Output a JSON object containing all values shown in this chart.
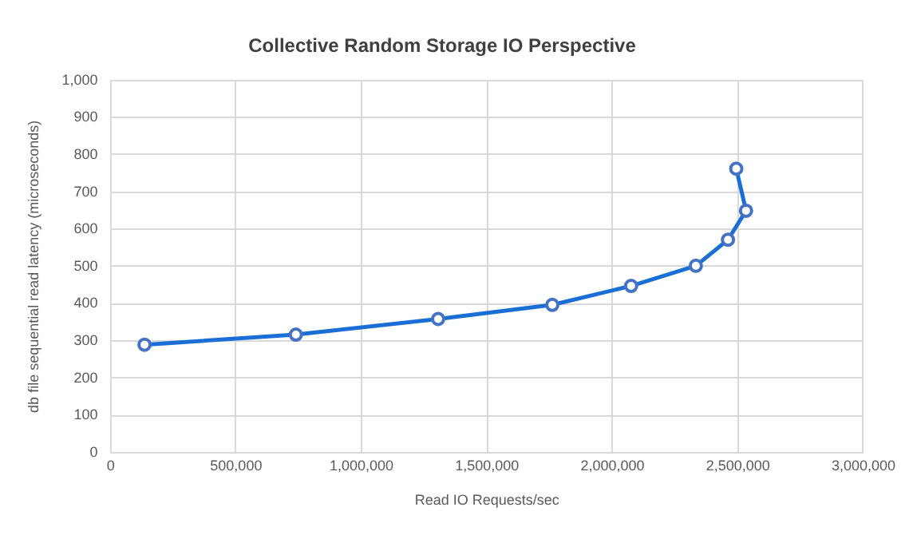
{
  "chart_data": {
    "type": "line",
    "title": "Collective Random Storage IO Perspective",
    "xlabel": "Read IO Requests/sec",
    "ylabel": "db file sequential read latency (microseconds)",
    "x": [
      135000,
      738000,
      1305000,
      1760000,
      2074000,
      2332000,
      2460000,
      2532000,
      2493000
    ],
    "series": [
      {
        "color": "#1a6fd6",
        "values": [
          290,
          317,
          359,
          397,
          448,
          502,
          572,
          650,
          763
        ]
      }
    ],
    "xlim": [
      0,
      3000000
    ],
    "xticks": [
      0,
      {
        "value": 500000,
        "label": "500,000"
      },
      {
        "value": 1000000,
        "label": "1,000,000"
      },
      {
        "value": 1500000,
        "label": "1,500,000"
      },
      {
        "value": 2000000,
        "label": "2,000,000"
      },
      {
        "value": 2500000,
        "label": "2,500,000"
      },
      {
        "value": 3000000,
        "label": "3,000,000"
      }
    ],
    "ylim": [
      0,
      1000
    ],
    "yticks": [
      0,
      100,
      200,
      300,
      400,
      500,
      600,
      700,
      800,
      900,
      {
        "value": 1000,
        "label": "1,000"
      }
    ],
    "grid": true,
    "legend": false,
    "marker": "circle",
    "line_style": "solid"
  }
}
